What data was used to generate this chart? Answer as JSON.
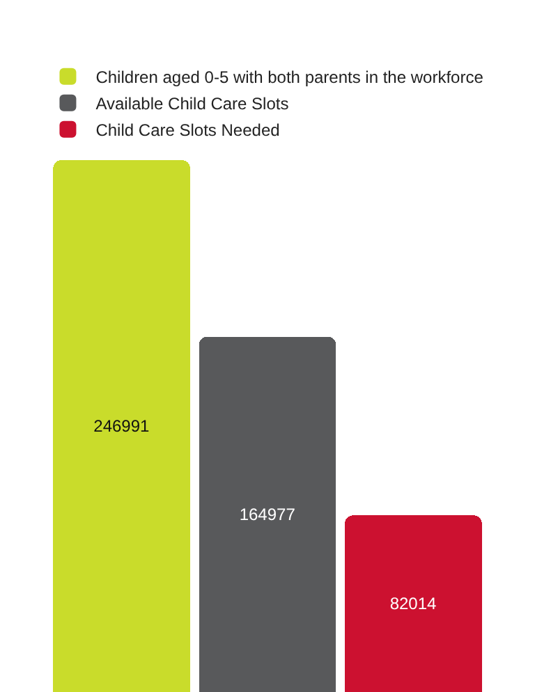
{
  "chart_data": {
    "type": "bar",
    "categories": [
      null,
      null,
      null
    ],
    "series": [
      {
        "name": "Children aged 0-5 with both parents in the workforce",
        "color": "#c9dc2b",
        "values": [
          246991,
          null,
          null
        ]
      },
      {
        "name": "Available Child Care Slots",
        "color": "#58595b",
        "values": [
          null,
          164977,
          null
        ]
      },
      {
        "name": "Child Care Slots Needed",
        "color": "#cc1130",
        "values": [
          null,
          null,
          82014
        ]
      }
    ],
    "stacked": true,
    "data_labels": true,
    "legend": "top",
    "tick_labels": false
  }
}
